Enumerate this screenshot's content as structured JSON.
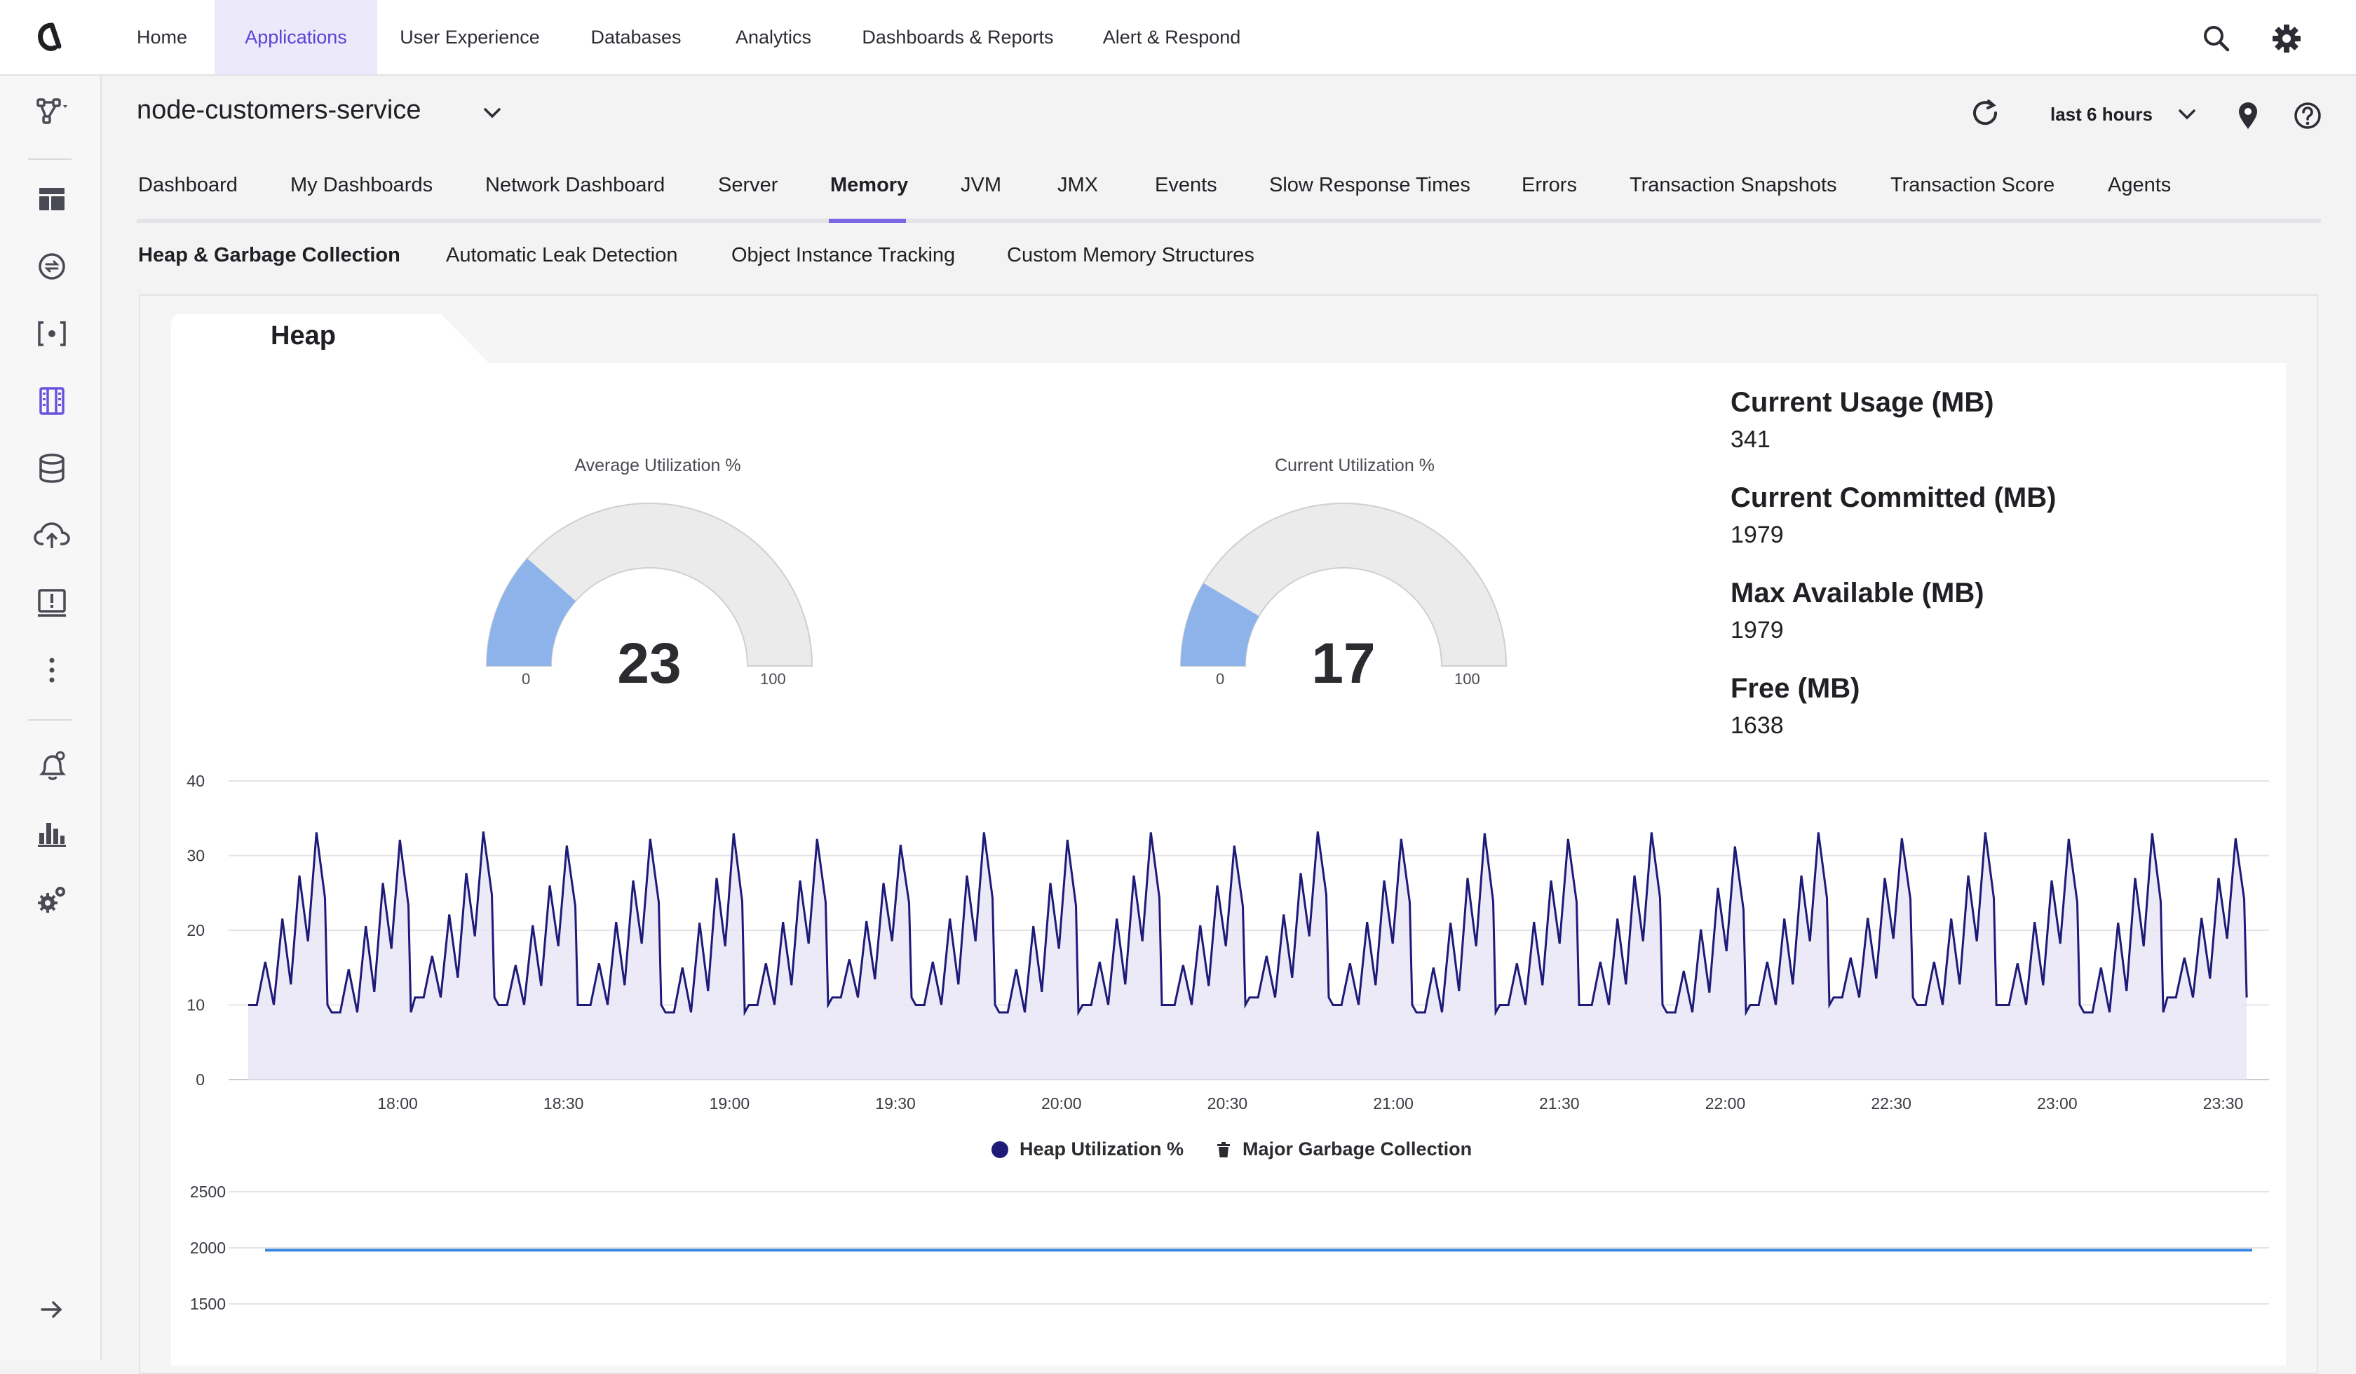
{
  "top_nav": {
    "items": [
      {
        "label": "Home",
        "active": false
      },
      {
        "label": "Applications",
        "active": true
      },
      {
        "label": "User Experience",
        "active": false
      },
      {
        "label": "Databases",
        "active": false
      },
      {
        "label": "Analytics",
        "active": false
      },
      {
        "label": "Dashboards & Reports",
        "active": false
      },
      {
        "label": "Alert & Respond",
        "active": false
      }
    ],
    "right_icons": [
      "search-icon",
      "gear-icon"
    ]
  },
  "sidebar": {
    "icons": [
      "flow-map-icon",
      "dashboard-grid-icon",
      "transactions-icon",
      "service-endpoints-icon",
      "tiers-nodes-icon",
      "databases-icon",
      "cloud-upload-icon",
      "troubleshoot-icon",
      "more-vertical-icon",
      "alerts-icon",
      "analytics-bar-icon",
      "settings-cogs-icon",
      "expand-arrow-icon"
    ]
  },
  "header": {
    "service_name": "node-customers-service",
    "time_range": "last 6 hours"
  },
  "tabs": {
    "items": [
      "Dashboard",
      "My Dashboards",
      "Network Dashboard",
      "Server",
      "Memory",
      "JVM",
      "JMX",
      "Events",
      "Slow Response Times",
      "Errors",
      "Transaction Snapshots",
      "Transaction Score",
      "Agents"
    ],
    "active": "Memory"
  },
  "subtabs": {
    "items": [
      "Heap & Garbage Collection",
      "Automatic Leak Detection",
      "Object Instance Tracking",
      "Custom Memory Structures"
    ],
    "active": "Heap & Garbage Collection"
  },
  "heap": {
    "title": "Heap",
    "gauges": [
      {
        "title": "Average Utilization %",
        "value": "23",
        "min": "0",
        "max": "100",
        "fraction": 0.23
      },
      {
        "title": "Current Utilization %",
        "value": "17",
        "min": "0",
        "max": "100",
        "fraction": 0.17
      }
    ],
    "stats": [
      {
        "label": "Current Usage (MB)",
        "value": "341"
      },
      {
        "label": "Current Committed (MB)",
        "value": "1979"
      },
      {
        "label": "Max Available (MB)",
        "value": "1979"
      },
      {
        "label": "Free (MB)",
        "value": "1638"
      }
    ],
    "colors": {
      "accent": "#5b42d6",
      "gauge_fill": "#8db3ea",
      "gauge_track": "#ebebeb",
      "series": "#1e1a78",
      "committed": "#3b86e0"
    }
  },
  "chart_data": [
    {
      "type": "area",
      "series": [
        {
          "name": "Heap Utilization %",
          "note": "sawtooth pattern approx. 10-36 with periodic GC drops"
        }
      ],
      "x_ticks": [
        "18:00",
        "18:30",
        "19:00",
        "19:30",
        "20:00",
        "20:30",
        "21:00",
        "21:30",
        "22:00",
        "22:30",
        "23:00",
        "23:30"
      ],
      "y_ticks": [
        "0",
        "10",
        "20",
        "30",
        "40"
      ],
      "ylim": [
        0,
        40
      ],
      "legend": [
        {
          "label": "Heap Utilization %",
          "marker": "circle"
        },
        {
          "label": "Major Garbage Collection",
          "marker": "trash-icon"
        }
      ],
      "legend_position": "bottom",
      "x_range": [
        "17:33",
        "23:35"
      ],
      "cycle_peaks": [
        36,
        35,
        36,
        34,
        35,
        36,
        35,
        34,
        36,
        35,
        36,
        34,
        36,
        35,
        36,
        35,
        36,
        34,
        36,
        35,
        36,
        35,
        36,
        35
      ],
      "cycle_troughs": [
        10,
        9,
        11,
        10,
        10,
        9,
        10,
        11,
        10,
        9,
        10,
        10,
        11,
        10,
        9,
        10,
        10,
        9,
        10,
        11,
        10,
        10,
        9,
        11
      ]
    },
    {
      "type": "line",
      "y_ticks": [
        "1500",
        "2000",
        "2500"
      ],
      "ylim": [
        1500,
        2500
      ],
      "series": [
        {
          "name": "Current Committed",
          "constant_value": 1979
        }
      ]
    }
  ]
}
